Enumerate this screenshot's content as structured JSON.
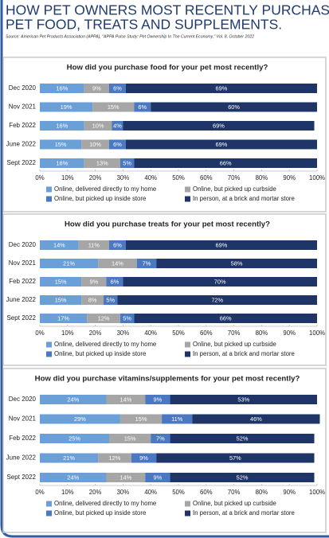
{
  "header": {
    "title_lines": [
      "HOW PET OWNERS MOST RECENTLY PURCHASED",
      "PET FOOD, TREATS AND SUPPLEMENTS."
    ],
    "source": "Source: American Pet Products Association (APPA), \"APPA Pulse Study: Pet Ownership In The Current Economy,\" Vol. 8, October 2022"
  },
  "chart_data": [
    {
      "type": "bar",
      "orientation": "horizontal",
      "stacked": true,
      "title": "How did you purchase food for your pet most recently?",
      "categories": [
        "Dec 2020",
        "Nov 2021",
        "Feb 2022",
        "June 2022",
        "Sept 2022"
      ],
      "series": [
        {
          "name": "Online, delivered directly to my home",
          "color": "#6a9fd8",
          "values": [
            16,
            19,
            16,
            15,
            16
          ],
          "value_labels": [
            "16%",
            "19%",
            "16%",
            "15%",
            "16%"
          ]
        },
        {
          "name": "Online, but picked up curbside",
          "color": "#a6a6a6",
          "values": [
            9,
            15,
            10,
            10,
            13
          ],
          "value_labels": [
            "9%",
            "15%",
            "10%",
            "10%",
            "13%"
          ]
        },
        {
          "name": "Online, but picked up inside store",
          "color": "#4a78c2",
          "values": [
            6,
            6,
            4,
            6,
            5
          ],
          "value_labels": [
            "6%",
            "6%",
            "4%",
            "6%",
            "5%"
          ]
        },
        {
          "name": "In person, at a brick and mortar store",
          "color": "#1f3467",
          "values": [
            69,
            60,
            69,
            69,
            66
          ],
          "value_labels": [
            "69%",
            "60%",
            "69%",
            "69%",
            "66%"
          ]
        }
      ],
      "xlim": [
        0,
        100
      ],
      "xticks": [
        {
          "value": 0,
          "label": "0%"
        },
        {
          "value": 10,
          "label": "10%"
        },
        {
          "value": 20,
          "label": "20%"
        },
        {
          "value": 30,
          "label": "30%"
        },
        {
          "value": 40,
          "label": "40%"
        },
        {
          "value": 50,
          "label": "50%"
        },
        {
          "value": 60,
          "label": "60%"
        },
        {
          "value": 70,
          "label": "70%"
        },
        {
          "value": 80,
          "label": "80%"
        },
        {
          "value": 90,
          "label": "90%"
        },
        {
          "value": 100,
          "label": "100%"
        }
      ],
      "grid": false
    },
    {
      "type": "bar",
      "orientation": "horizontal",
      "stacked": true,
      "title": "How did you purchase treats for your pet most recently?",
      "categories": [
        "Dec 2020",
        "Nov 2021",
        "Feb 2022",
        "June 2022",
        "Sept 2022"
      ],
      "series": [
        {
          "name": "Online, delivered directly to my home",
          "color": "#6a9fd8",
          "values": [
            14,
            21,
            15,
            15,
            17
          ],
          "value_labels": [
            "14%",
            "21%",
            "15%",
            "15%",
            "17%"
          ]
        },
        {
          "name": "Online, but picked up curbside",
          "color": "#a6a6a6",
          "values": [
            11,
            14,
            9,
            8,
            12
          ],
          "value_labels": [
            "11%",
            "14%",
            "9%",
            "8%",
            "12%"
          ]
        },
        {
          "name": "Online, but picked up inside store",
          "color": "#4a78c2",
          "values": [
            6,
            7,
            6,
            5,
            5
          ],
          "value_labels": [
            "6%",
            "7%",
            "6%",
            "5%",
            "5%"
          ]
        },
        {
          "name": "In person, at a brick and mortar store",
          "color": "#1f3467",
          "values": [
            69,
            58,
            70,
            72,
            66
          ],
          "value_labels": [
            "69%",
            "58%",
            "70%",
            "72%",
            "66%"
          ]
        }
      ],
      "xlim": [
        0,
        100
      ],
      "xticks": [
        {
          "value": 0,
          "label": "0%"
        },
        {
          "value": 10,
          "label": "10%"
        },
        {
          "value": 20,
          "label": "20%"
        },
        {
          "value": 30,
          "label": "30%"
        },
        {
          "value": 40,
          "label": "40%"
        },
        {
          "value": 50,
          "label": "50%"
        },
        {
          "value": 60,
          "label": "60%"
        },
        {
          "value": 70,
          "label": "70%"
        },
        {
          "value": 80,
          "label": "80%"
        },
        {
          "value": 90,
          "label": "90%"
        },
        {
          "value": 100,
          "label": "100%"
        }
      ],
      "grid": false
    },
    {
      "type": "bar",
      "orientation": "horizontal",
      "stacked": true,
      "title": "How did you purchase vitamins/supplements for your pet most recently?",
      "categories": [
        "Dec 2020",
        "Nov 2021",
        "Feb 2022",
        "June 2022",
        "Sept 2022"
      ],
      "series": [
        {
          "name": "Online, delivered directly to my home",
          "color": "#6a9fd8",
          "values": [
            24,
            29,
            25,
            21,
            24
          ],
          "value_labels": [
            "24%",
            "29%",
            "25%",
            "21%",
            "24%"
          ]
        },
        {
          "name": "Online, but picked up curbside",
          "color": "#a6a6a6",
          "values": [
            14,
            15,
            15,
            12,
            14
          ],
          "value_labels": [
            "14%",
            "15%",
            "15%",
            "12%",
            "14%"
          ]
        },
        {
          "name": "Online, but picked up inside store",
          "color": "#4a78c2",
          "values": [
            9,
            11,
            7,
            9,
            9
          ],
          "value_labels": [
            "9%",
            "11%",
            "7%",
            "9%",
            "9%"
          ]
        },
        {
          "name": "In person, at a brick and mortar store",
          "color": "#1f3467",
          "values": [
            53,
            46,
            52,
            57,
            52
          ],
          "value_labels": [
            "53%",
            "46%",
            "52%",
            "57%",
            "52%"
          ]
        }
      ],
      "xlim": [
        0,
        100
      ],
      "xticks": [
        {
          "value": 0,
          "label": "0%"
        },
        {
          "value": 10,
          "label": "10%"
        },
        {
          "value": 20,
          "label": "20%"
        },
        {
          "value": 30,
          "label": "30%"
        },
        {
          "value": 40,
          "label": "40%"
        },
        {
          "value": 50,
          "label": "50%"
        },
        {
          "value": 60,
          "label": "60%"
        },
        {
          "value": 70,
          "label": "70%"
        },
        {
          "value": 80,
          "label": "80%"
        },
        {
          "value": 90,
          "label": "90%"
        },
        {
          "value": 100,
          "label": "100%"
        }
      ],
      "grid": false
    }
  ]
}
